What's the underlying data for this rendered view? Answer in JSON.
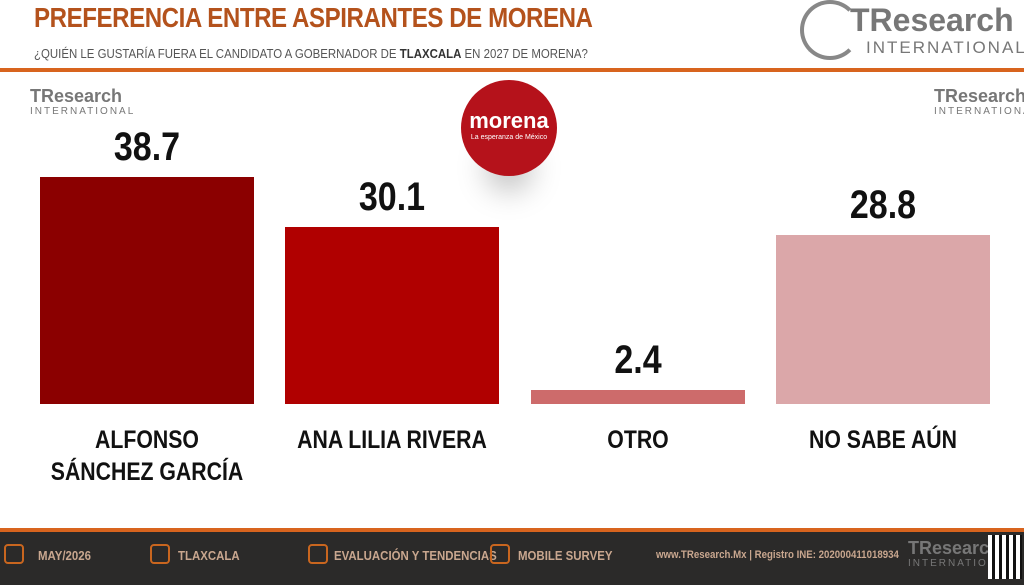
{
  "chart_data": {
    "type": "bar",
    "title": "PREFERENCIA ENTRE ASPIRANTES DE MORENA",
    "subtitle_parts": [
      "¿QUIÉN LE GUSTARÍA FUERA EL CANDIDATO A GOBERNADOR DE ",
      "TLAXCALA",
      " EN 2027 DE MORENA?"
    ],
    "brand": "TResearch",
    "brand_sub": "INTERNATIONAL",
    "party_logo": {
      "name": "morena",
      "slogan": "La esperanza de México"
    },
    "categories": [
      "ALFONSO SÁNCHEZ GARCÍA",
      "ANA LILIA RIVERA",
      "OTRO",
      "NO SABE AÚN"
    ],
    "values": [
      38.7,
      30.1,
      2.4,
      28.8
    ],
    "colors": [
      "#8b0000",
      "#b00000",
      "#cd6b6b",
      "#dba7a9"
    ],
    "ylim": [
      0,
      40
    ],
    "footer": [
      "MAY/2026",
      "TLAXCALA",
      "EVALUACIÓN Y TENDENCIAS",
      "MOBILE SURVEY",
      "www.TResearch.Mx | Registro INE: 202000411018934"
    ]
  }
}
